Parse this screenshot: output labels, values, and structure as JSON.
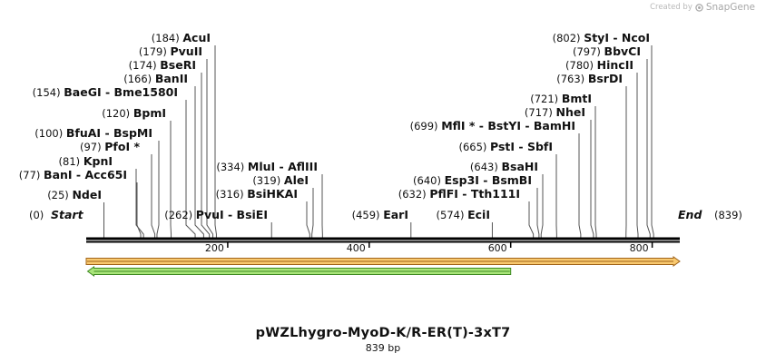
{
  "watermark": {
    "created_by": "Created by",
    "brand": "SnapGene",
    "icon": "snapgene-logo-icon"
  },
  "map": {
    "title": "pWZLhygro-MyoD-K/R-ER(T)-3xT7",
    "length_label": "839 bp",
    "length_bp": 839,
    "start_label": "Start",
    "end_label": "End",
    "start_pos": "(0)",
    "end_pos": "(839)",
    "tick_labels": [
      "200",
      "400",
      "600",
      "800"
    ],
    "tick_values": [
      200,
      400,
      600,
      800
    ]
  },
  "sites": [
    {
      "pos": 25,
      "pos_label": "(25)",
      "names": [
        "NdeI"
      ]
    },
    {
      "pos": 77,
      "pos_label": "(77)",
      "names": [
        "BanI",
        "Acc65I"
      ]
    },
    {
      "pos": 81,
      "pos_label": "(81)",
      "names": [
        "KpnI"
      ]
    },
    {
      "pos": 97,
      "pos_label": "(97)",
      "names": [
        "PfoI *"
      ]
    },
    {
      "pos": 100,
      "pos_label": "(100)",
      "names": [
        "BfuAI",
        "BspMI"
      ]
    },
    {
      "pos": 120,
      "pos_label": "(120)",
      "names": [
        "BpmI"
      ]
    },
    {
      "pos": 154,
      "pos_label": "(154)",
      "names": [
        "BaeGI",
        "Bme1580I"
      ]
    },
    {
      "pos": 166,
      "pos_label": "(166)",
      "names": [
        "BanII"
      ]
    },
    {
      "pos": 174,
      "pos_label": "(174)",
      "names": [
        "BseRI"
      ]
    },
    {
      "pos": 179,
      "pos_label": "(179)",
      "names": [
        "PvuII"
      ]
    },
    {
      "pos": 184,
      "pos_label": "(184)",
      "names": [
        "AcuI"
      ]
    },
    {
      "pos": 262,
      "pos_label": "(262)",
      "names": [
        "PvuI",
        "BsiEI"
      ]
    },
    {
      "pos": 316,
      "pos_label": "(316)",
      "names": [
        "BsiHKAI"
      ]
    },
    {
      "pos": 319,
      "pos_label": "(319)",
      "names": [
        "AleI"
      ]
    },
    {
      "pos": 334,
      "pos_label": "(334)",
      "names": [
        "MluI",
        "AflIII"
      ]
    },
    {
      "pos": 459,
      "pos_label": "(459)",
      "names": [
        "EarI"
      ]
    },
    {
      "pos": 574,
      "pos_label": "(574)",
      "names": [
        "EciI"
      ]
    },
    {
      "pos": 632,
      "pos_label": "(632)",
      "names": [
        "PflFI",
        "Tth111I"
      ]
    },
    {
      "pos": 640,
      "pos_label": "(640)",
      "names": [
        "Esp3I",
        "BsmBI"
      ]
    },
    {
      "pos": 643,
      "pos_label": "(643)",
      "names": [
        "BsaHI"
      ]
    },
    {
      "pos": 665,
      "pos_label": "(665)",
      "names": [
        "PstI",
        "SbfI"
      ]
    },
    {
      "pos": 699,
      "pos_label": "(699)",
      "names": [
        "MflI *",
        "BstYI",
        "BamHI"
      ]
    },
    {
      "pos": 717,
      "pos_label": "(717)",
      "names": [
        "NheI"
      ]
    },
    {
      "pos": 721,
      "pos_label": "(721)",
      "names": [
        "BmtI"
      ]
    },
    {
      "pos": 763,
      "pos_label": "(763)",
      "names": [
        "BsrDI"
      ]
    },
    {
      "pos": 780,
      "pos_label": "(780)",
      "names": [
        "HincII"
      ]
    },
    {
      "pos": 797,
      "pos_label": "(797)",
      "names": [
        "BbvCI"
      ]
    },
    {
      "pos": 802,
      "pos_label": "(802)",
      "names": [
        "StyI",
        "NcoI"
      ]
    }
  ],
  "features": [
    {
      "name": "orange-feature-arrow",
      "start": 0,
      "end": 839,
      "direction": "forward",
      "fill": "#f9c96f",
      "stroke": "#a0641a"
    },
    {
      "name": "green-feature-arrow",
      "start": 2,
      "end": 600,
      "direction": "reverse",
      "fill": "#a9e57a",
      "stroke": "#3f8a22"
    }
  ],
  "colors": {
    "backbone": "#000000",
    "line": "#555555"
  }
}
